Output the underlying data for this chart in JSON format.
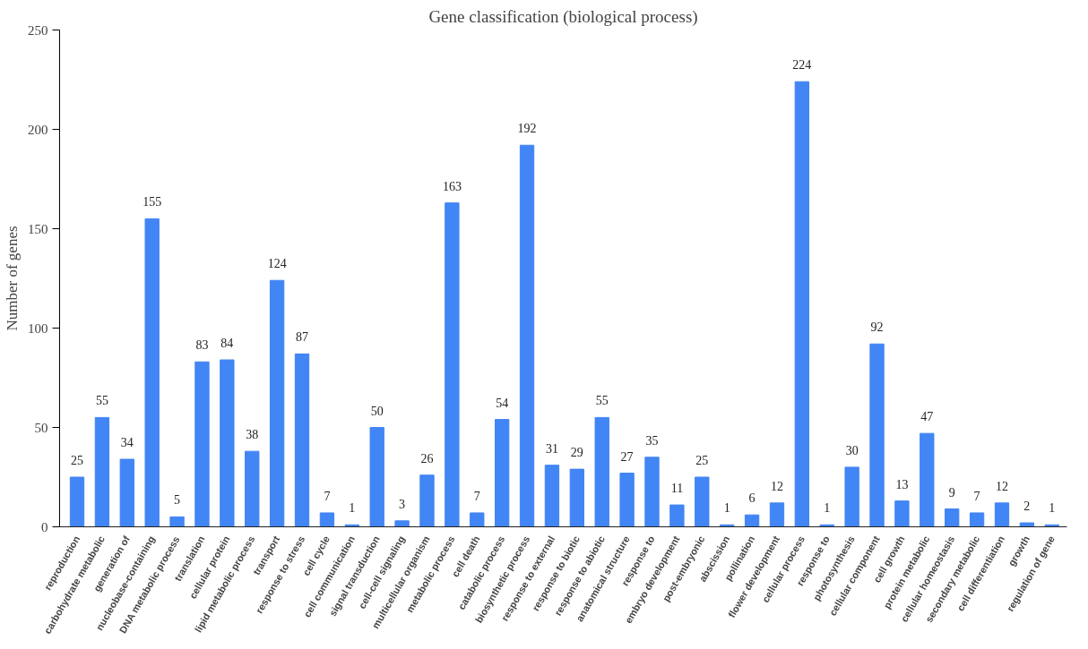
{
  "chart_data": {
    "type": "bar",
    "title": "Gene classification (biological process)",
    "ylabel": "Number of genes",
    "categories": [
      "reproduction",
      "carbohydrate metabolic",
      "generation of",
      "nucleobase-containing",
      "DNA metabolic process",
      "translation",
      "cellular protein",
      "lipid metabolic process",
      "transport",
      "response to stress",
      "cell cycle",
      "cell communication",
      "signal transduction",
      "cell-cell signaling",
      "multicellular organism",
      "metabolic process",
      "cell death",
      "catabolic process",
      "biosynthetic process",
      "response to external",
      "response to biotic",
      "response to abiotic",
      "anatomical structure",
      "response to",
      "embryo development",
      "post-embryonic",
      "abscission",
      "pollination",
      "flower development",
      "cellular process",
      "response to",
      "photosynthesis",
      "cellular component",
      "cell growth",
      "protein metabolic",
      "cellular homeostasis",
      "secondary metabolic",
      "cell differentiation",
      "growth",
      "regulation of gene"
    ],
    "values": [
      25,
      55,
      34,
      155,
      5,
      83,
      84,
      38,
      124,
      87,
      7,
      1,
      50,
      3,
      26,
      163,
      7,
      54,
      192,
      31,
      29,
      55,
      27,
      35,
      11,
      25,
      1,
      6,
      12,
      224,
      1,
      30,
      92,
      13,
      47,
      9,
      7,
      12,
      2,
      1
    ],
    "color": "#4285f4",
    "ylim": [
      0,
      250
    ],
    "yticks": [
      0,
      50,
      100,
      150,
      200,
      250
    ],
    "grid": false,
    "data_labels": true
  }
}
